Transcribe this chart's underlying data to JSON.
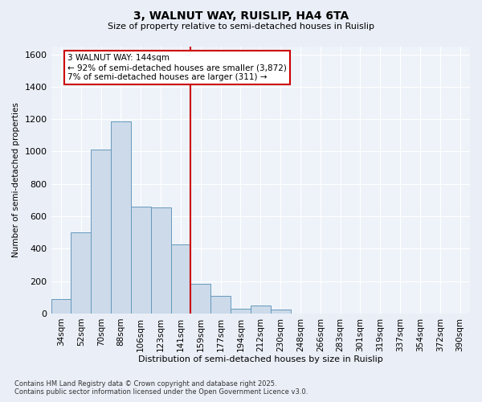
{
  "title": "3, WALNUT WAY, RUISLIP, HA4 6TA",
  "subtitle": "Size of property relative to semi-detached houses in Ruislip",
  "xlabel": "Distribution of semi-detached houses by size in Ruislip",
  "ylabel": "Number of semi-detached properties",
  "categories": [
    "34sqm",
    "52sqm",
    "70sqm",
    "88sqm",
    "106sqm",
    "123sqm",
    "141sqm",
    "159sqm",
    "177sqm",
    "194sqm",
    "212sqm",
    "230sqm",
    "248sqm",
    "266sqm",
    "283sqm",
    "301sqm",
    "319sqm",
    "337sqm",
    "354sqm",
    "372sqm",
    "390sqm"
  ],
  "values": [
    90,
    500,
    1010,
    1185,
    660,
    655,
    425,
    185,
    110,
    30,
    50,
    25,
    0,
    0,
    0,
    0,
    0,
    0,
    0,
    0,
    0
  ],
  "bar_color": "#ccdaea",
  "bar_edge_color": "#6699bb",
  "vline_color": "#cc0000",
  "vline_index": 6.5,
  "annotation_title": "3 WALNUT WAY: 144sqm",
  "annotation_line1": "← 92% of semi-detached houses are smaller (3,872)",
  "annotation_line2": "7% of semi-detached houses are larger (311) →",
  "annotation_box_color": "#cc0000",
  "ylim": [
    0,
    1650
  ],
  "yticks": [
    0,
    200,
    400,
    600,
    800,
    1000,
    1200,
    1400,
    1600
  ],
  "bg_color": "#eaeff7",
  "plot_bg_color": "#eef3f9",
  "footer_line1": "Contains HM Land Registry data © Crown copyright and database right 2025.",
  "footer_line2": "Contains public sector information licensed under the Open Government Licence v3.0."
}
